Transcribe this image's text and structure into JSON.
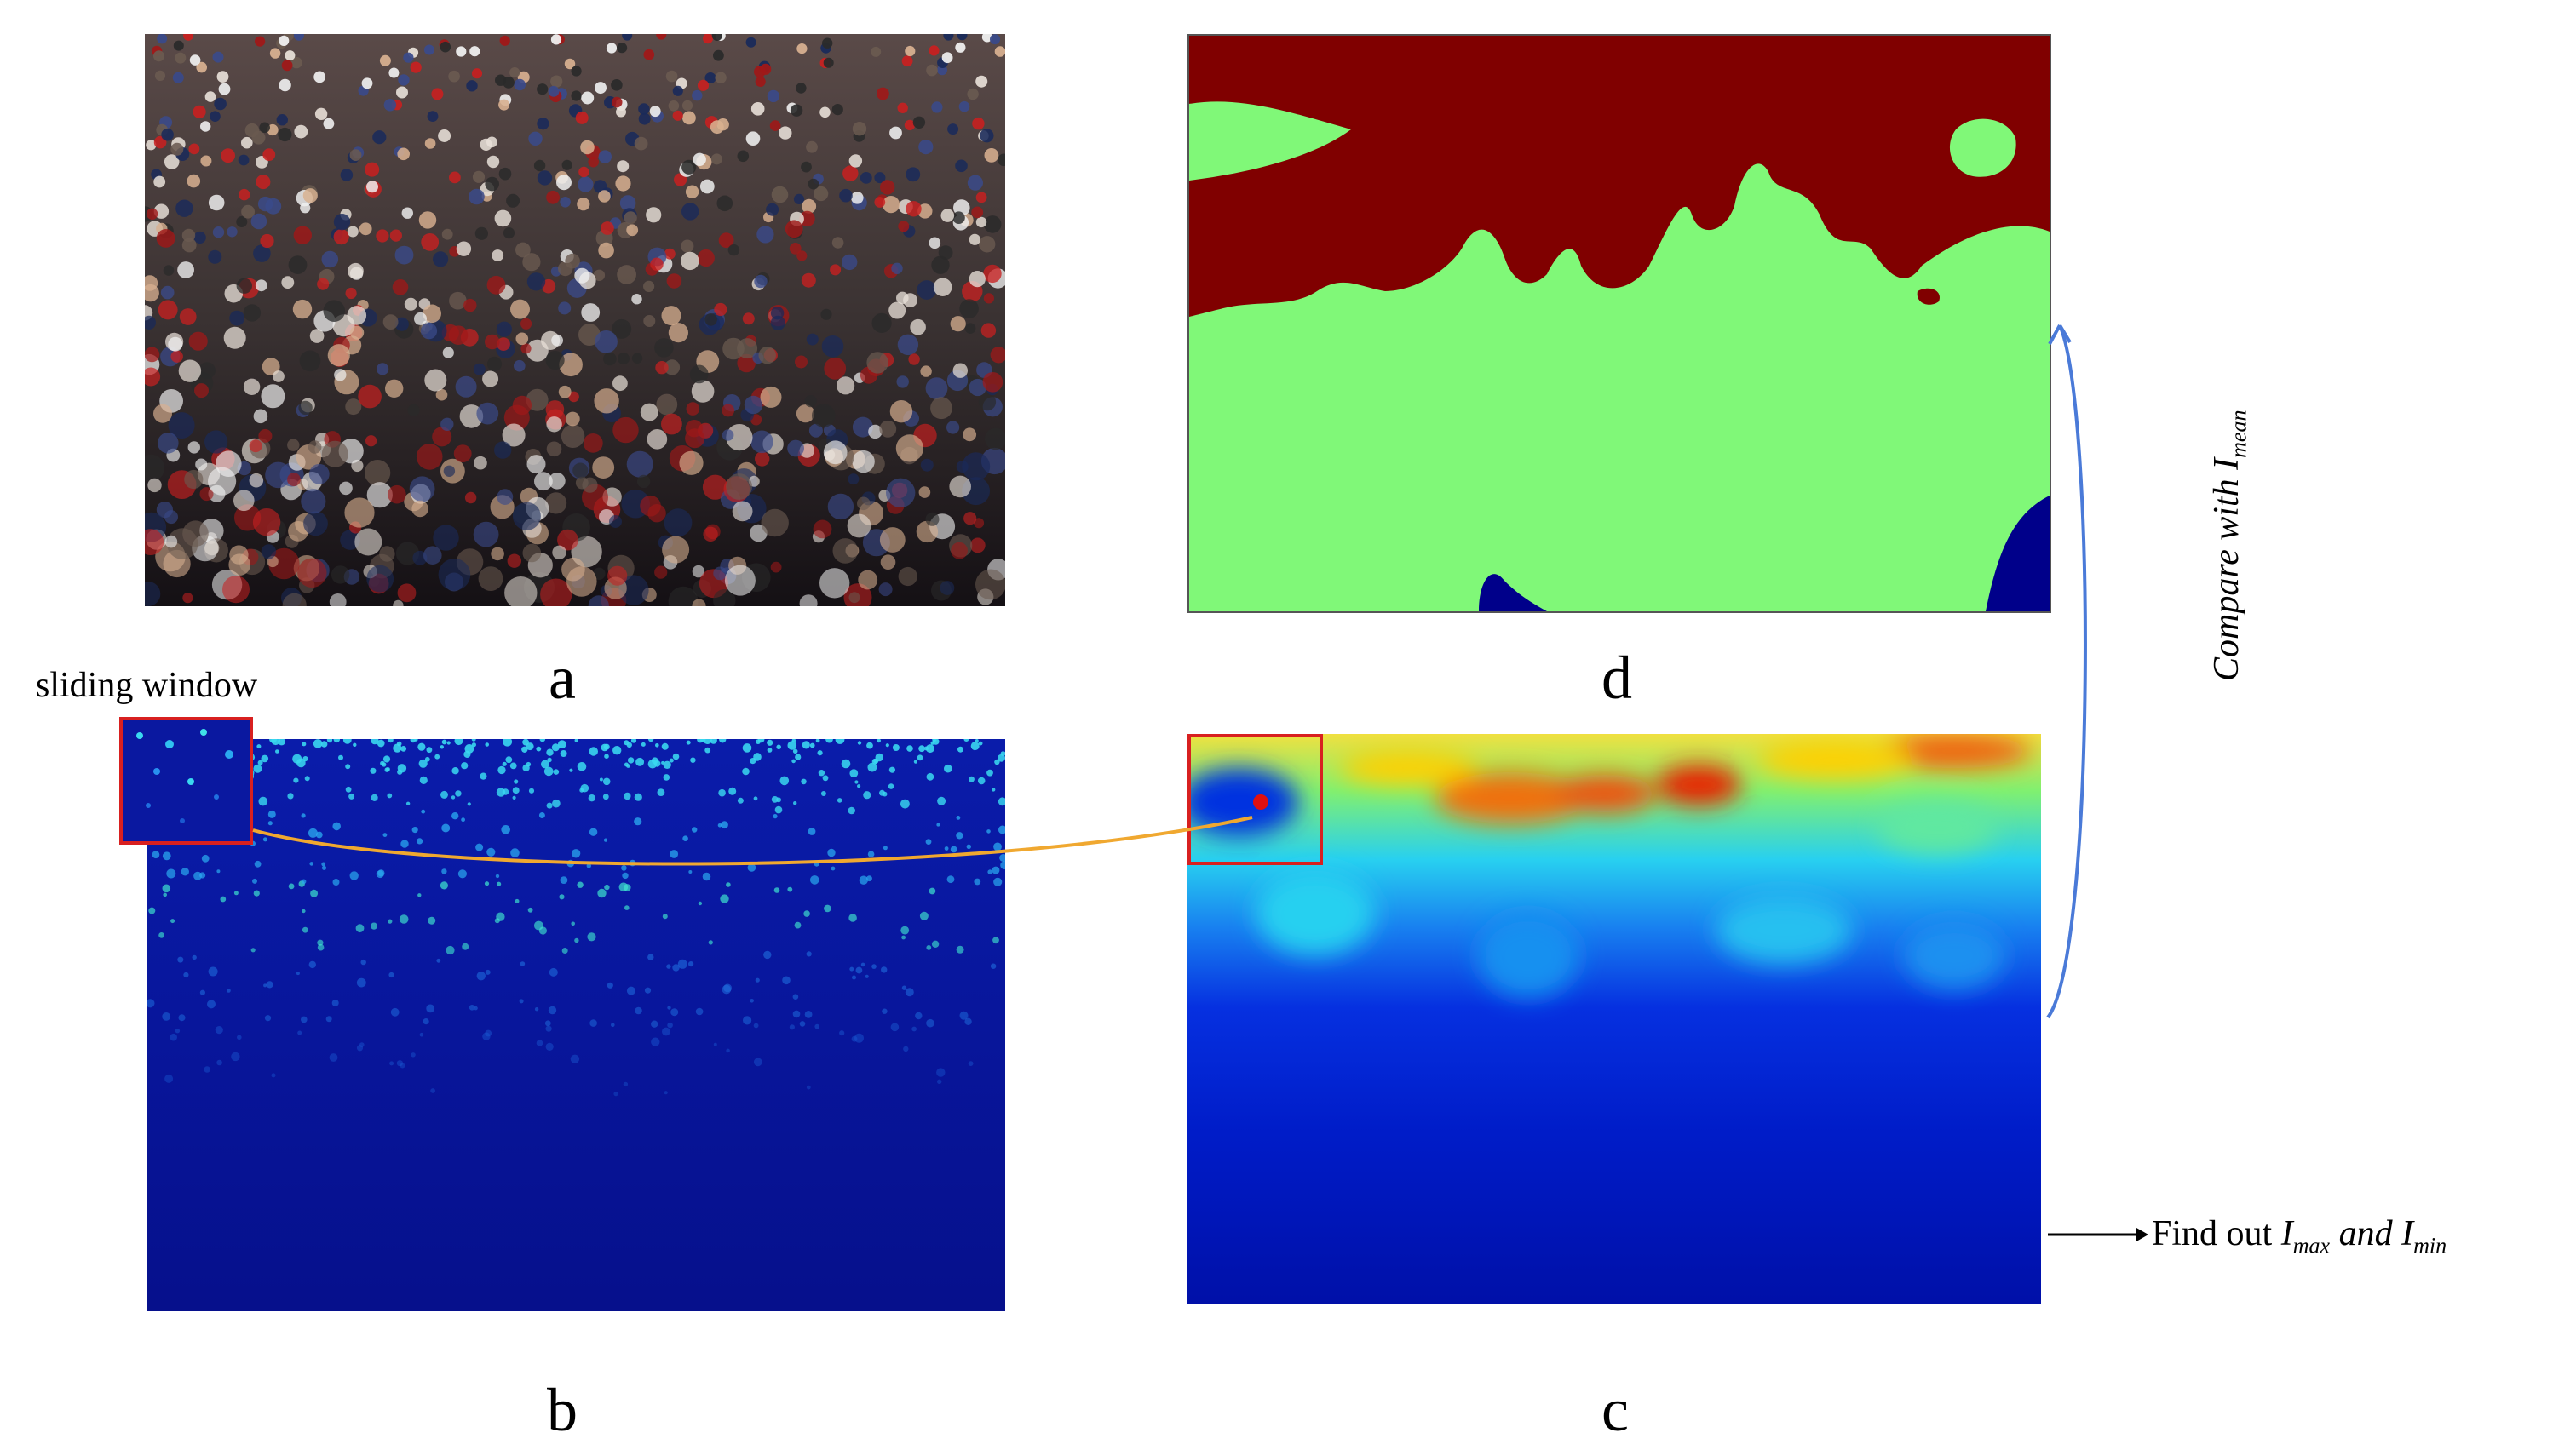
{
  "panels": {
    "a": {
      "caption": "a"
    },
    "b": {
      "caption": "b"
    },
    "c": {
      "caption": "c"
    },
    "d": {
      "caption": "d"
    }
  },
  "annotations": {
    "sliding_window": "sliding window",
    "compare_prefix": "Compare with ",
    "compare_var": "I",
    "compare_sub": "mean",
    "find_prefix": "Find out ",
    "find_var1": "I",
    "find_sub1": "max",
    "find_and": " and ",
    "find_var2": "I",
    "find_sub2": "min"
  },
  "colors": {
    "crowd_dark": "#1c1a1c",
    "density_low": "#0a14a0",
    "density_spot": "#3ad8f0",
    "heat_low": "#0018d8",
    "heat_mid": "#22e0f0",
    "heat_high": "#ffd000",
    "heat_peak": "#e82000",
    "seg_dark_red": "#800000",
    "seg_green": "#80f878",
    "seg_navy": "#00008a",
    "window_border": "#d82020",
    "connector_orange": "#f0a830",
    "arrow_blue": "#4a7ad8",
    "arrow_black": "#000000"
  }
}
